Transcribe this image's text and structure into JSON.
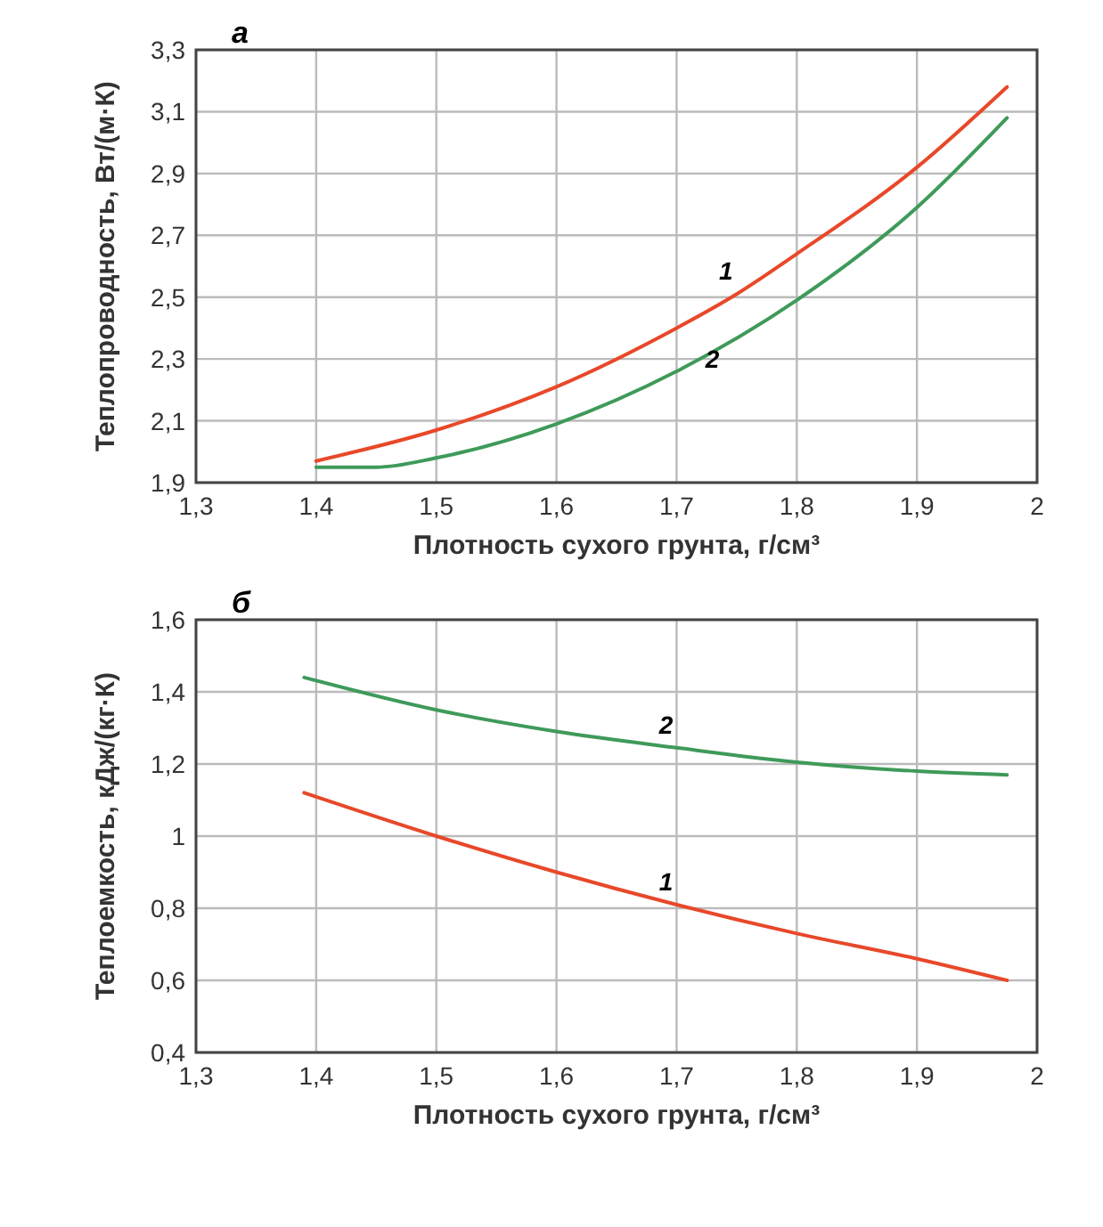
{
  "chart_data": [
    {
      "type": "line",
      "title": "а",
      "xlabel": "Плотность сухого грунта, г/см³",
      "ylabel": "Теплопроводность, Вт/(м·К)",
      "xlim": [
        1.3,
        2
      ],
      "ylim": [
        1.9,
        3.3
      ],
      "xticks": [
        {
          "value": 1.3,
          "label": "1,3"
        },
        {
          "value": 1.4,
          "label": "1,4"
        },
        {
          "value": 1.5,
          "label": "1,5"
        },
        {
          "value": 1.6,
          "label": "1,6"
        },
        {
          "value": 1.7,
          "label": "1,7"
        },
        {
          "value": 1.8,
          "label": "1,8"
        },
        {
          "value": 1.9,
          "label": "1,9"
        },
        2
      ],
      "yticks": [
        {
          "value": 1.9,
          "label": "1,9"
        },
        {
          "value": 2.1,
          "label": "2,1"
        },
        {
          "value": 2.3,
          "label": "2,3"
        },
        {
          "value": 2.5,
          "label": "2,5"
        },
        {
          "value": 2.7,
          "label": "2,7"
        },
        {
          "value": 2.9,
          "label": "2,9"
        },
        {
          "value": 3.1,
          "label": "3,1"
        },
        {
          "value": 3.3,
          "label": "3,3"
        }
      ],
      "grid": true,
      "x": [
        1.4,
        1.5,
        1.6,
        1.7,
        1.75,
        1.8,
        1.9,
        1.975
      ],
      "series": [
        {
          "name": "1",
          "color": "#e8482a",
          "values": [
            1.97,
            2.07,
            2.21,
            2.4,
            2.51,
            2.64,
            2.92,
            3.18
          ]
        },
        {
          "name": "2",
          "color": "#3f9a5a",
          "x": [
            1.4,
            1.45,
            1.5,
            1.6,
            1.7,
            1.8,
            1.9,
            1.975
          ],
          "values": [
            1.95,
            1.95,
            1.98,
            2.09,
            2.26,
            2.49,
            2.79,
            3.08
          ]
        }
      ]
    },
    {
      "type": "line",
      "title": "б",
      "xlabel": "Плотность сухого грунта, г/см³",
      "ylabel": "Теплоемкость, кДж/(кг·К)",
      "xlim": [
        1.3,
        2
      ],
      "ylim": [
        0.4,
        1.6
      ],
      "xticks": [
        {
          "value": 1.3,
          "label": "1,3"
        },
        {
          "value": 1.4,
          "label": "1,4"
        },
        {
          "value": 1.5,
          "label": "1,5"
        },
        {
          "value": 1.6,
          "label": "1,6"
        },
        {
          "value": 1.7,
          "label": "1,7"
        },
        {
          "value": 1.8,
          "label": "1,8"
        },
        {
          "value": 1.9,
          "label": "1,9"
        },
        2
      ],
      "yticks": [
        {
          "value": 0.4,
          "label": "0,4"
        },
        {
          "value": 0.6,
          "label": "0,6"
        },
        {
          "value": 0.8,
          "label": "0,8"
        },
        1,
        {
          "value": 1.2,
          "label": "1,2"
        },
        {
          "value": 1.4,
          "label": "1,4"
        },
        {
          "value": 1.6,
          "label": "1,6"
        }
      ],
      "grid": true,
      "x": [
        1.39,
        1.5,
        1.6,
        1.7,
        1.8,
        1.9,
        1.975
      ],
      "series": [
        {
          "name": "1",
          "color": "#e8482a",
          "values": [
            1.12,
            1.0,
            0.9,
            0.81,
            0.73,
            0.66,
            0.6
          ]
        },
        {
          "name": "2",
          "color": "#3f9a5a",
          "values": [
            1.44,
            1.35,
            1.29,
            1.245,
            1.205,
            1.18,
            1.17
          ]
        }
      ]
    }
  ]
}
